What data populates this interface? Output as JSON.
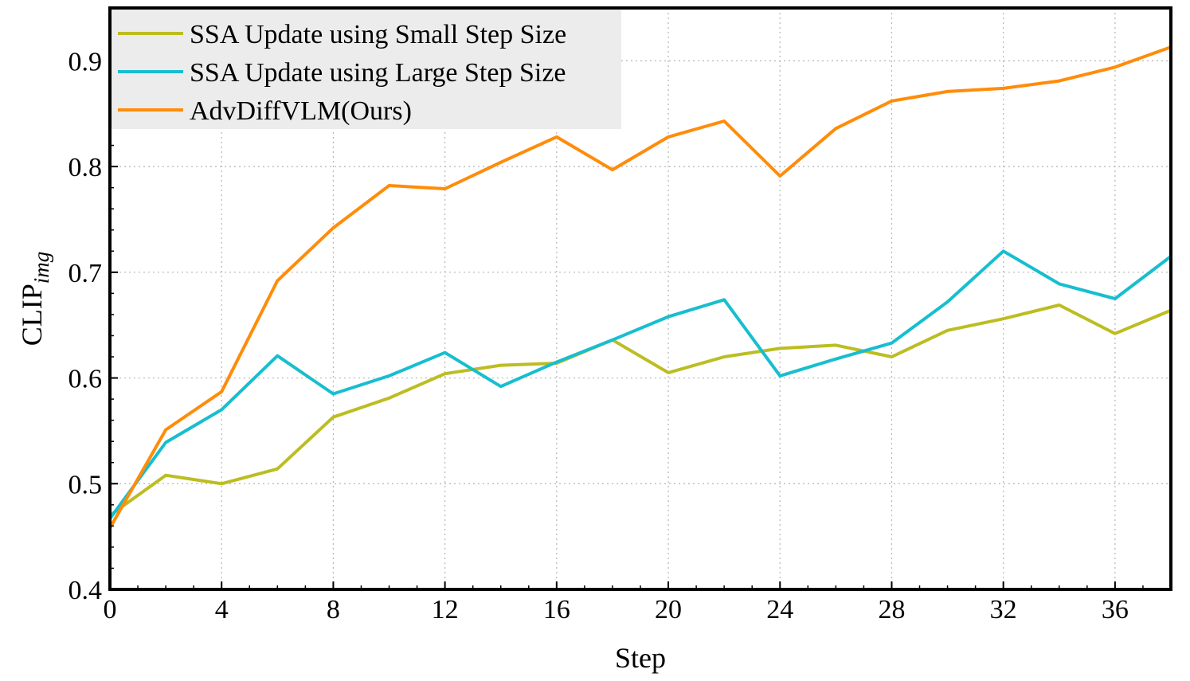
{
  "chart_data": {
    "type": "line",
    "xlabel": "Step",
    "ylabel_main": "CLIP",
    "ylabel_sub": "img",
    "xlim": [
      0,
      38
    ],
    "ylim": [
      0.4,
      0.95
    ],
    "xticks": [
      0,
      4,
      8,
      12,
      16,
      20,
      24,
      28,
      32,
      36
    ],
    "xtick_labels": [
      "0",
      "4",
      "8",
      "12",
      "16",
      "20",
      "24",
      "28",
      "32",
      "36"
    ],
    "yticks": [
      0.4,
      0.5,
      0.6,
      0.7,
      0.8,
      0.9
    ],
    "ytick_labels": [
      "0.4",
      "0.5",
      "0.6",
      "0.7",
      "0.8",
      "0.9"
    ],
    "grid": true,
    "legend_position": "top-left",
    "x": [
      0,
      2,
      4,
      6,
      8,
      10,
      12,
      14,
      16,
      18,
      20,
      22,
      24,
      26,
      28,
      30,
      32,
      34,
      36,
      38
    ],
    "series": [
      {
        "name": "SSA Update using Small Step Size",
        "color": "#bcbd22",
        "values": [
          0.47,
          0.508,
          0.5,
          0.514,
          0.563,
          0.581,
          0.604,
          0.612,
          0.614,
          0.636,
          0.605,
          0.62,
          0.628,
          0.631,
          0.62,
          0.645,
          0.656,
          0.669,
          0.642,
          0.664
        ]
      },
      {
        "name": "SSA Update using Large Step Size",
        "color": "#17becf",
        "values": [
          0.467,
          0.539,
          0.57,
          0.621,
          0.585,
          0.602,
          0.624,
          0.592,
          0.615,
          0.636,
          0.658,
          0.674,
          0.602,
          0.618,
          0.633,
          0.672,
          0.72,
          0.689,
          0.675,
          0.715
        ]
      },
      {
        "name": "AdvDiffVLM(Ours)",
        "color": "#ff8c0a",
        "values": [
          0.458,
          0.551,
          0.587,
          0.692,
          0.742,
          0.782,
          0.779,
          0.804,
          0.828,
          0.797,
          0.828,
          0.843,
          0.791,
          0.836,
          0.862,
          0.871,
          0.874,
          0.881,
          0.894,
          0.913
        ]
      }
    ]
  }
}
